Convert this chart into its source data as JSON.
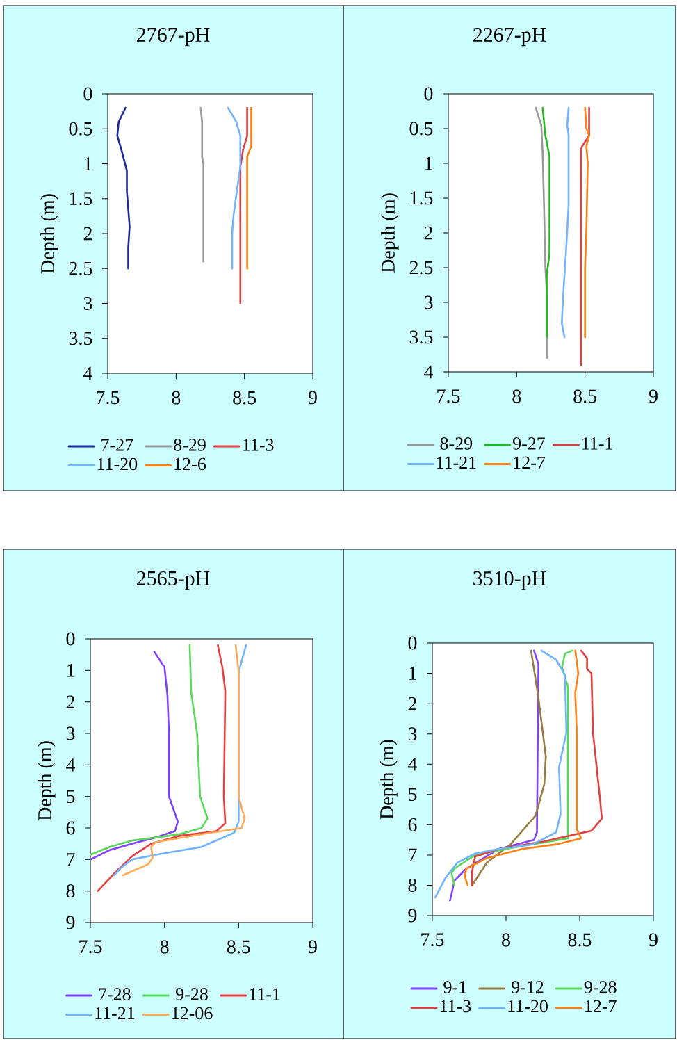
{
  "chart_data": [
    {
      "type": "line",
      "title": "2767-pH",
      "ylabel": "Depth (m)",
      "xlim": [
        7.5,
        9
      ],
      "xticks": [
        7.5,
        8,
        8.5,
        9
      ],
      "ylim": [
        4,
        0
      ],
      "yticks": [
        0,
        0.5,
        1,
        1.5,
        2,
        2.5,
        3,
        3.5,
        4
      ],
      "legend": "bottom",
      "series": [
        {
          "name": "7-27",
          "color": "#1a2a9c",
          "x": [
            7.63,
            7.58,
            7.57,
            7.6,
            7.64,
            7.64,
            7.66,
            7.65,
            7.65
          ],
          "values": [
            0.2,
            0.4,
            0.6,
            0.8,
            1.1,
            1.4,
            1.9,
            2.2,
            2.5
          ]
        },
        {
          "name": "8-29",
          "color": "#999999",
          "x": [
            8.18,
            8.19,
            8.19,
            8.2,
            8.2
          ],
          "values": [
            0.2,
            0.4,
            0.9,
            1.0,
            2.4
          ]
        },
        {
          "name": "11-3",
          "color": "#e04040",
          "x": [
            8.52,
            8.52,
            8.49,
            8.47,
            8.47
          ],
          "values": [
            0.2,
            0.6,
            0.8,
            1.05,
            3.0
          ]
        },
        {
          "name": "11-20",
          "color": "#70b4ff",
          "x": [
            8.38,
            8.44,
            8.47,
            8.47,
            8.44,
            8.42,
            8.41,
            8.41
          ],
          "values": [
            0.2,
            0.4,
            0.6,
            1.05,
            1.45,
            1.75,
            2.0,
            2.5
          ]
        },
        {
          "name": "12-6",
          "color": "#ff8010",
          "x": [
            8.55,
            8.55,
            8.52,
            8.52,
            8.52
          ],
          "values": [
            0.2,
            0.75,
            0.9,
            1.3,
            2.5
          ]
        }
      ]
    },
    {
      "type": "line",
      "title": "2267-pH",
      "ylabel": "Depth (m)",
      "xlim": [
        7.5,
        9
      ],
      "xticks": [
        7.5,
        8,
        8.5,
        9
      ],
      "ylim": [
        4,
        0
      ],
      "yticks": [
        0,
        0.5,
        1,
        1.5,
        2,
        2.5,
        3,
        3.5,
        4
      ],
      "legend": "bottom",
      "series": [
        {
          "name": "8-29",
          "color": "#999999",
          "x": [
            8.14,
            8.18,
            8.19,
            8.2,
            8.21,
            8.22,
            8.22
          ],
          "values": [
            0.2,
            0.45,
            0.85,
            1.6,
            2.5,
            2.85,
            3.8
          ]
        },
        {
          "name": "9-27",
          "color": "#22bb22",
          "x": [
            8.19,
            8.21,
            8.24,
            8.24,
            8.22,
            8.22
          ],
          "values": [
            0.2,
            0.6,
            0.9,
            2.3,
            2.6,
            3.5
          ]
        },
        {
          "name": "11-1",
          "color": "#e04040",
          "x": [
            8.53,
            8.53,
            8.48,
            8.47,
            8.47,
            8.47,
            8.47
          ],
          "values": [
            0.2,
            0.6,
            0.75,
            0.8,
            1.6,
            2.4,
            3.9
          ]
        },
        {
          "name": "11-21",
          "color": "#70b4ff",
          "x": [
            8.38,
            8.37,
            8.38,
            8.38,
            8.36,
            8.34,
            8.33,
            8.35
          ],
          "values": [
            0.2,
            0.45,
            0.6,
            1.6,
            2.3,
            2.9,
            3.3,
            3.5
          ]
        },
        {
          "name": "12-7",
          "color": "#ff8010",
          "x": [
            8.5,
            8.51,
            8.53,
            8.51,
            8.52,
            8.51,
            8.5,
            8.5
          ],
          "values": [
            0.2,
            0.5,
            0.6,
            0.75,
            1.0,
            1.95,
            2.5,
            3.5
          ]
        }
      ]
    },
    {
      "type": "line",
      "title": "2565-pH",
      "ylabel": "Depth (m)",
      "xlim": [
        7.5,
        9
      ],
      "xticks": [
        7.5,
        8,
        8.5,
        9
      ],
      "ylim": [
        9,
        0
      ],
      "yticks": [
        0,
        1,
        2,
        3,
        4,
        5,
        6,
        7,
        8,
        9
      ],
      "legend": "bottom",
      "series": [
        {
          "name": "7-28",
          "color": "#8040ff",
          "x": [
            7.93,
            8.0,
            8.02,
            8.03,
            8.03,
            8.09,
            8.07,
            7.94,
            7.78,
            7.63,
            7.5
          ],
          "values": [
            0.4,
            0.9,
            1.8,
            3.0,
            5.0,
            5.8,
            6.1,
            6.3,
            6.5,
            6.7,
            7.0
          ]
        },
        {
          "name": "9-28",
          "color": "#5ad85a",
          "x": [
            8.17,
            8.18,
            8.22,
            8.24,
            8.29,
            8.25,
            8.1,
            7.78,
            7.63,
            7.5
          ],
          "values": [
            0.2,
            1.7,
            3.0,
            5.0,
            5.7,
            6.0,
            6.2,
            6.4,
            6.6,
            6.85
          ]
        },
        {
          "name": "11-1",
          "color": "#e84040",
          "x": [
            8.36,
            8.39,
            8.41,
            8.4,
            8.41,
            8.35,
            8.1,
            7.91,
            7.78,
            7.66,
            7.55
          ],
          "values": [
            0.2,
            0.9,
            1.65,
            5.0,
            5.85,
            6.1,
            6.25,
            6.5,
            6.9,
            7.45,
            8.0
          ]
        },
        {
          "name": "11-21",
          "color": "#70b4ff",
          "x": [
            8.55,
            8.5,
            8.5,
            8.47,
            8.25,
            7.94,
            7.78,
            7.71,
            7.66
          ],
          "values": [
            0.2,
            1.05,
            5.8,
            6.15,
            6.6,
            6.85,
            7.0,
            7.25,
            7.5
          ]
        },
        {
          "name": "12-06",
          "color": "#ffaa55",
          "x": [
            8.48,
            8.5,
            8.5,
            8.54,
            8.52,
            8.25,
            7.94,
            7.91,
            7.92,
            7.89,
            7.72
          ],
          "values": [
            0.2,
            1.05,
            5.0,
            5.7,
            6.0,
            6.2,
            6.45,
            6.6,
            6.95,
            7.15,
            7.5
          ]
        }
      ]
    },
    {
      "type": "line",
      "title": "3510-pH",
      "ylabel": "Depth (m)",
      "xlim": [
        7.5,
        9
      ],
      "xticks": [
        7.5,
        8,
        8.5,
        9
      ],
      "ylim": [
        9,
        0
      ],
      "yticks": [
        0,
        1,
        2,
        3,
        4,
        5,
        6,
        7,
        8,
        9
      ],
      "legend": "bottom",
      "series": [
        {
          "name": "9-1",
          "color": "#8040ff",
          "x": [
            8.19,
            8.22,
            8.21,
            8.19,
            7.95,
            7.73,
            7.65,
            7.63,
            7.62
          ],
          "values": [
            0.25,
            0.7,
            6.25,
            6.5,
            6.8,
            7.45,
            7.85,
            8.3,
            8.5
          ]
        },
        {
          "name": "9-12",
          "color": "#9a7a40",
          "x": [
            8.17,
            8.22,
            8.27,
            8.26,
            8.2,
            8.03,
            7.87,
            7.77
          ],
          "values": [
            0.25,
            1.8,
            3.75,
            4.65,
            5.7,
            6.65,
            7.25,
            8.0
          ]
        },
        {
          "name": "9-28",
          "color": "#5ad85a",
          "x": [
            8.45,
            8.4,
            8.38,
            8.42,
            8.42,
            8.11,
            7.79,
            7.65,
            7.63,
            7.65
          ],
          "values": [
            0.25,
            0.35,
            0.8,
            1.45,
            6.45,
            6.7,
            7.0,
            7.45,
            7.6,
            8.0
          ]
        },
        {
          "name": "11-3",
          "color": "#e04040",
          "x": [
            8.51,
            8.55,
            8.55,
            8.58,
            8.59,
            8.64,
            8.65,
            8.58,
            8.26,
            7.95,
            7.79,
            7.77,
            7.77
          ],
          "values": [
            0.25,
            0.5,
            0.85,
            1.0,
            2.95,
            5.25,
            5.8,
            6.2,
            6.55,
            6.8,
            7.05,
            7.55,
            8.0
          ]
        },
        {
          "name": "11-20",
          "color": "#70b4ff",
          "x": [
            8.24,
            8.34,
            8.4,
            8.41,
            8.36,
            8.37,
            8.34,
            8.18,
            7.95,
            7.79,
            7.67,
            7.59,
            7.52
          ],
          "values": [
            0.25,
            0.55,
            1.05,
            2.95,
            4.1,
            5.65,
            6.25,
            6.65,
            6.8,
            6.95,
            7.25,
            7.75,
            8.4
          ]
        },
        {
          "name": "12-7",
          "color": "#ff8010",
          "x": [
            8.47,
            8.49,
            8.47,
            8.48,
            8.48,
            8.51,
            8.34,
            8.11,
            7.87,
            7.73,
            7.72,
            7.74
          ],
          "values": [
            0.25,
            1.0,
            1.65,
            2.95,
            6.15,
            6.45,
            6.65,
            6.8,
            7.1,
            7.45,
            7.7,
            8.0
          ]
        }
      ]
    }
  ]
}
